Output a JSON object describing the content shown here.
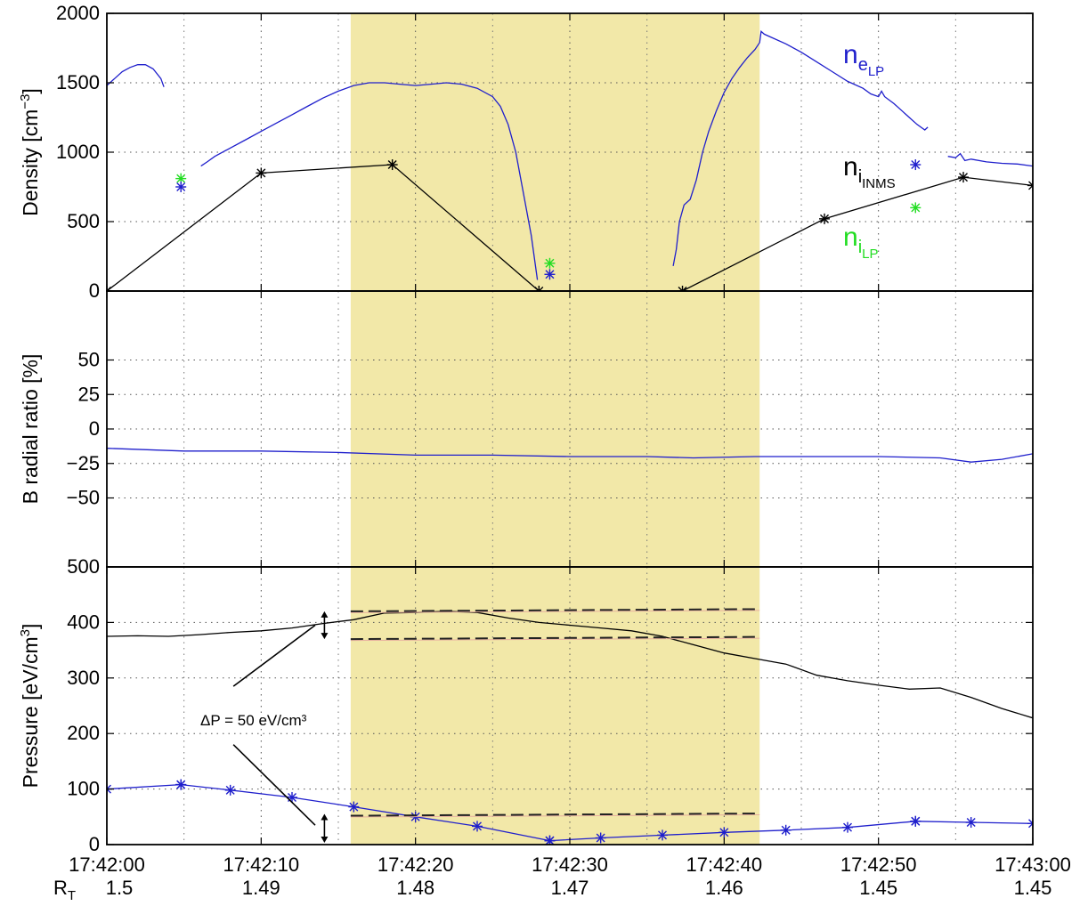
{
  "chart_data": {
    "type": "line",
    "x_unit": "seconds after 17:42:00",
    "x_range": [
      0,
      60
    ],
    "x_tick_values": [
      0,
      10,
      20,
      30,
      40,
      50,
      60
    ],
    "x_tick_labels": [
      "17:42:00",
      "17:42:10",
      "17:42:20",
      "17:42:30",
      "17:42:40",
      "17:42:50",
      "17:43:00"
    ],
    "rt_label_main": "R",
    "rt_label_sub": "T",
    "rt_labels": [
      "1.5",
      "1.49",
      "1.48",
      "1.47",
      "1.46",
      "1.45",
      "1.45"
    ],
    "shaded_region": {
      "x_start": 15.8,
      "x_end": 42.3,
      "color": "#f2e8a8"
    },
    "grid": true,
    "colors": {
      "blue": "#1f1fcc",
      "black": "#000000",
      "green": "#22dd22",
      "dash_guide": "#e8b0a0"
    },
    "panels": [
      {
        "id": "density",
        "ylabel": "Density [cm",
        "ylabel_sup": "−3",
        "ylabel_end": "]",
        "ylim": [
          0,
          2000
        ],
        "y_ticks": [
          0,
          500,
          1000,
          1500,
          2000
        ],
        "series": [
          {
            "legend_main": "n",
            "legend_sub": "e",
            "legend_subsub": "LP",
            "color": "#1f1fcc",
            "style": "line",
            "segments": [
              [
                [
                  0,
                  1480
                ],
                [
                  0.5,
                  1530
                ],
                [
                  1,
                  1580
                ],
                [
                  1.5,
                  1610
                ],
                [
                  2,
                  1630
                ],
                [
                  2.5,
                  1630
                ],
                [
                  3,
                  1600
                ],
                [
                  3.5,
                  1530
                ],
                [
                  3.7,
                  1470
                ]
              ],
              [
                [
                  6.1,
                  900
                ],
                [
                  6.5,
                  930
                ],
                [
                  7,
                  970
                ],
                [
                  8,
                  1030
                ],
                [
                  9,
                  1090
                ],
                [
                  10,
                  1150
                ],
                [
                  11,
                  1210
                ],
                [
                  12,
                  1270
                ],
                [
                  13,
                  1330
                ],
                [
                  14,
                  1390
                ],
                [
                  15,
                  1440
                ],
                [
                  16,
                  1480
                ],
                [
                  17,
                  1500
                ],
                [
                  18,
                  1500
                ],
                [
                  19,
                  1490
                ],
                [
                  20,
                  1480
                ],
                [
                  21,
                  1490
                ],
                [
                  22,
                  1500
                ],
                [
                  23,
                  1490
                ],
                [
                  24,
                  1460
                ],
                [
                  25,
                  1400
                ],
                [
                  25.5,
                  1330
                ],
                [
                  26,
                  1200
                ],
                [
                  26.5,
                  1000
                ],
                [
                  27,
                  700
                ],
                [
                  27.5,
                  400
                ],
                [
                  27.9,
                  80
                ]
              ],
              [
                [
                  36.7,
                  180
                ],
                [
                  36.9,
                  300
                ],
                [
                  37.1,
                  500
                ],
                [
                  37.4,
                  620
                ],
                [
                  37.8,
                  660
                ],
                [
                  38.2,
                  800
                ],
                [
                  38.6,
                  1000
                ],
                [
                  39,
                  1150
                ],
                [
                  39.5,
                  1300
                ],
                [
                  40,
                  1430
                ],
                [
                  40.5,
                  1530
                ],
                [
                  41,
                  1610
                ],
                [
                  41.5,
                  1680
                ],
                [
                  42,
                  1740
                ],
                [
                  42.3,
                  1790
                ],
                [
                  42.4,
                  1870
                ],
                [
                  42.6,
                  1850
                ],
                [
                  43,
                  1830
                ],
                [
                  44,
                  1780
                ],
                [
                  45,
                  1720
                ],
                [
                  46,
                  1650
                ],
                [
                  47,
                  1580
                ],
                [
                  48,
                  1510
                ],
                [
                  49,
                  1460
                ],
                [
                  49.5,
                  1420
                ],
                [
                  50,
                  1400
                ],
                [
                  50.2,
                  1440
                ],
                [
                  50.4,
                  1400
                ],
                [
                  51,
                  1350
                ],
                [
                  51.5,
                  1300
                ],
                [
                  52,
                  1250
                ],
                [
                  52.5,
                  1200
                ],
                [
                  53,
                  1160
                ],
                [
                  53.2,
                  1180
                ]
              ],
              [
                [
                  54.5,
                  970
                ],
                [
                  55,
                  960
                ],
                [
                  55.3,
                  990
                ],
                [
                  55.6,
                  940
                ],
                [
                  56,
                  950
                ],
                [
                  57,
                  930
                ],
                [
                  58,
                  920
                ],
                [
                  59,
                  915
                ],
                [
                  60,
                  900
                ]
              ]
            ]
          },
          {
            "legend_main": "n",
            "legend_sub": "i",
            "legend_subsub": "INMS",
            "color": "#000000",
            "style": "line-star",
            "points": [
              [
                0,
                0
              ],
              [
                10,
                850
              ],
              [
                18.5,
                910
              ],
              [
                28,
                0
              ],
              [
                37.3,
                0
              ],
              [
                46.5,
                520
              ],
              [
                55.5,
                820
              ],
              [
                60,
                760
              ]
            ]
          },
          {
            "legend_main": "n",
            "legend_sub": "i",
            "legend_subsub": "LP",
            "color": "#22dd22",
            "style": "star",
            "points": [
              [
                4.8,
                810
              ],
              [
                28.7,
                200
              ],
              [
                52.4,
                600
              ]
            ]
          },
          {
            "name_ref": "n_e LP samples",
            "color": "#1f1fcc",
            "style": "star",
            "points": [
              [
                4.8,
                750
              ],
              [
                28.7,
                120
              ],
              [
                52.4,
                910
              ]
            ]
          }
        ]
      },
      {
        "id": "bratio",
        "ylabel": "B radial ratio [%]",
        "ylim": [
          -100,
          100
        ],
        "y_ticks": [
          -50,
          -25,
          0,
          25,
          50
        ],
        "series": [
          {
            "color": "#1f1fcc",
            "style": "line",
            "points": [
              [
                0,
                -14
              ],
              [
                5,
                -16
              ],
              [
                10,
                -16
              ],
              [
                15,
                -17
              ],
              [
                20,
                -19
              ],
              [
                25,
                -19
              ],
              [
                30,
                -20
              ],
              [
                35,
                -20
              ],
              [
                38,
                -21
              ],
              [
                42,
                -20
              ],
              [
                46,
                -20
              ],
              [
                50,
                -20
              ],
              [
                54,
                -21
              ],
              [
                56,
                -24
              ],
              [
                58,
                -22
              ],
              [
                60,
                -18
              ]
            ]
          }
        ]
      },
      {
        "id": "pressure",
        "ylabel": "Pressure [eV/cm",
        "ylabel_sup": "3",
        "ylabel_end": "]",
        "ylim": [
          0,
          500
        ],
        "y_ticks": [
          0,
          100,
          200,
          300,
          400,
          500
        ],
        "series": [
          {
            "color": "#000000",
            "style": "line",
            "points": [
              [
                0,
                375
              ],
              [
                2,
                376
              ],
              [
                4,
                375
              ],
              [
                6,
                378
              ],
              [
                8,
                382
              ],
              [
                10,
                385
              ],
              [
                12,
                390
              ],
              [
                14,
                398
              ],
              [
                16,
                405
              ],
              [
                18,
                417
              ],
              [
                20,
                418
              ],
              [
                22,
                420
              ],
              [
                24,
                418
              ],
              [
                26,
                408
              ],
              [
                28,
                400
              ],
              [
                30,
                395
              ],
              [
                32,
                390
              ],
              [
                34,
                385
              ],
              [
                36,
                375
              ],
              [
                38,
                360
              ],
              [
                40,
                345
              ],
              [
                42,
                335
              ],
              [
                44,
                325
              ],
              [
                46,
                305
              ],
              [
                48,
                295
              ],
              [
                50,
                287
              ],
              [
                52,
                280
              ],
              [
                54,
                282
              ],
              [
                56,
                265
              ],
              [
                58,
                245
              ],
              [
                60,
                228
              ]
            ]
          },
          {
            "color": "#1f1fcc",
            "style": "line-star",
            "points": [
              [
                0,
                100
              ],
              [
                4.8,
                108
              ],
              [
                8,
                98
              ],
              [
                12,
                85
              ],
              [
                16,
                68
              ],
              [
                20,
                50
              ],
              [
                24,
                33
              ],
              [
                28.7,
                7
              ],
              [
                32,
                12
              ],
              [
                36,
                17
              ],
              [
                40,
                22
              ],
              [
                44,
                26
              ],
              [
                48,
                31
              ],
              [
                52.4,
                42
              ],
              [
                56,
                40
              ],
              [
                60,
                38
              ]
            ]
          },
          {
            "color": "#1f1fcc",
            "style": "star",
            "points": [
              [
                4.8,
                108
              ],
              [
                28.7,
                7
              ],
              [
                52.4,
                42
              ]
            ]
          }
        ],
        "dashed_levels": [
          {
            "x_start": 15.8,
            "x_end": 42.3,
            "y_start": 420,
            "y_end": 424
          },
          {
            "x_start": 15.8,
            "x_end": 42.3,
            "y_start": 370,
            "y_end": 374
          },
          {
            "x_start": 15.8,
            "x_end": 42.3,
            "y_start": 52,
            "y_end": 56
          }
        ],
        "annotation": {
          "text": "ΔP = 50 eV/cm³",
          "x": 9.5,
          "y": 215
        }
      }
    ]
  }
}
